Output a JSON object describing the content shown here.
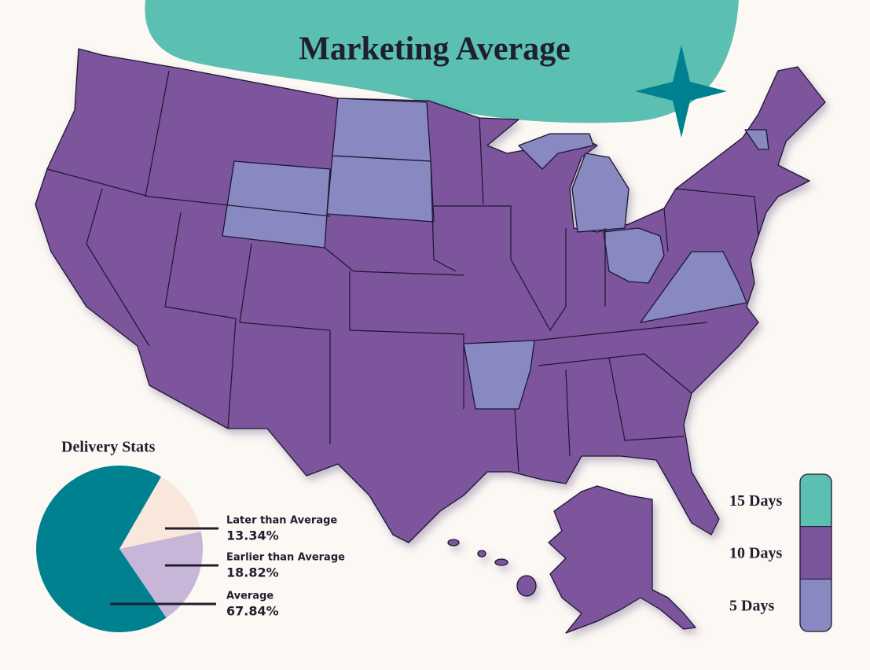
{
  "title": "Marketing Average",
  "legend": [
    {
      "label": "15 Days",
      "color": "#5bbfb1"
    },
    {
      "label": "10 Days",
      "color": "#7b559c"
    },
    {
      "label": "5 Days",
      "color": "#8789c0"
    }
  ],
  "chart_data": {
    "type": "pie",
    "title": "Delivery Stats",
    "categories": [
      "Later than Average",
      "Earlier than Average",
      "Average"
    ],
    "values": [
      13.34,
      18.82,
      67.84
    ],
    "value_labels": [
      "13.34%",
      "18.82%",
      "67.84%"
    ],
    "colors": [
      "#f8e7da",
      "#c8b6d8",
      "#00818f"
    ]
  }
}
